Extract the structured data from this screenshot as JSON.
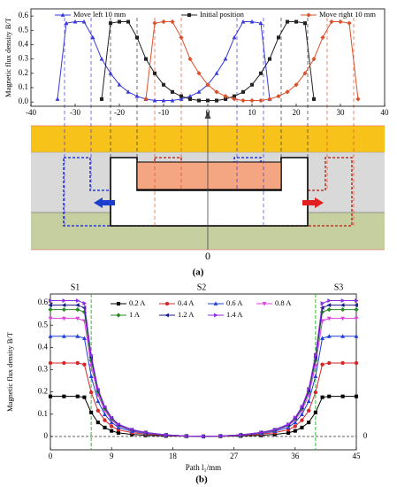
{
  "chart_data": [
    {
      "type": "line",
      "y_label": "Magnetic flux density B/T",
      "x": [
        -36,
        -34,
        -32,
        -30,
        -28,
        -26,
        -24,
        -22,
        -20,
        -18,
        -16,
        -14,
        -12,
        -10,
        -8,
        -6,
        -4,
        -2,
        0,
        2,
        4,
        6,
        8,
        10,
        12,
        14,
        16,
        18,
        20,
        22,
        24,
        26,
        28,
        30,
        32,
        34,
        36
      ],
      "xlim": [
        -40,
        40
      ],
      "xticks": [
        -40,
        -30,
        -20,
        -10,
        0,
        10,
        20,
        30,
        40
      ],
      "ylim": [
        -0.03,
        0.65
      ],
      "yticks": [
        {
          "value": 0,
          "label": "0.0"
        },
        0.1,
        0.2,
        0.3,
        0.4,
        0.5,
        0.6
      ],
      "series": [
        {
          "name": "Move left 10 mm",
          "color": "#3a3adb",
          "marker": "triangle",
          "values": [
            null,
            0.02,
            0.55,
            0.56,
            0.56,
            0.45,
            0.3,
            0.2,
            0.12,
            0.07,
            0.04,
            0.02,
            0.01,
            0.01,
            0.01,
            0.02,
            0.04,
            0.07,
            0.12,
            0.2,
            0.3,
            0.45,
            0.56,
            0.56,
            0.55,
            0.02,
            null,
            null,
            null,
            null,
            null,
            null,
            null,
            null,
            null,
            null,
            null
          ]
        },
        {
          "name": "Initial position",
          "color": "#222222",
          "marker": "square",
          "values": [
            null,
            null,
            null,
            null,
            null,
            null,
            0.02,
            0.55,
            0.56,
            0.56,
            0.45,
            0.3,
            0.2,
            0.12,
            0.07,
            0.04,
            0.02,
            0.01,
            0.01,
            0.01,
            0.02,
            0.04,
            0.07,
            0.12,
            0.2,
            0.3,
            0.45,
            0.56,
            0.56,
            0.55,
            0.02,
            null,
            null,
            null,
            null,
            null,
            null
          ]
        },
        {
          "name": "Move right 10 mm",
          "color": "#d9522b",
          "marker": "diamond",
          "values": [
            null,
            null,
            null,
            null,
            null,
            null,
            null,
            null,
            null,
            null,
            null,
            0.02,
            0.55,
            0.56,
            0.56,
            0.45,
            0.3,
            0.2,
            0.12,
            0.07,
            0.04,
            0.02,
            0.01,
            0.01,
            0.01,
            0.02,
            0.04,
            0.07,
            0.12,
            0.2,
            0.3,
            0.45,
            0.56,
            0.56,
            0.55,
            0.02,
            null
          ]
        }
      ]
    },
    {
      "type": "line",
      "y_label": "Magnetic flux density B/T",
      "x_label": "Path l₁/mm",
      "annotations": [
        "S1",
        "S2",
        "S3"
      ],
      "zero_line": true,
      "zero_line_label": "0",
      "vlines": [
        6,
        39
      ],
      "vline_color": "#33bb33",
      "x": [
        0,
        2,
        4,
        5,
        6,
        7,
        8,
        9,
        10,
        12,
        14,
        17,
        20,
        22.5,
        25,
        28,
        31,
        33,
        35,
        36,
        37,
        38,
        39,
        40,
        41,
        43,
        45
      ],
      "xlim": [
        0,
        45
      ],
      "xticks": [
        0,
        9,
        18,
        27,
        36,
        45
      ],
      "ylim": [
        -0.06,
        0.64
      ],
      "yticks": [
        0,
        0.1,
        0.2,
        0.3,
        0.4,
        0.5,
        0.6
      ],
      "series": [
        {
          "name": "0.2 A",
          "color": "#000000",
          "marker": "square",
          "values": [
            0.18,
            0.18,
            0.18,
            0.176,
            0.108,
            0.063,
            0.04,
            0.025,
            0.016,
            0.009,
            0.005,
            0.002,
            0.001,
            0,
            0.001,
            0.002,
            0.005,
            0.009,
            0.016,
            0.025,
            0.04,
            0.063,
            0.108,
            0.176,
            0.18,
            0.18,
            0.18
          ]
        },
        {
          "name": "0.4 A",
          "color": "#d62728",
          "marker": "circle",
          "values": [
            0.33,
            0.33,
            0.33,
            0.323,
            0.198,
            0.116,
            0.073,
            0.046,
            0.03,
            0.017,
            0.01,
            0.004,
            0.001,
            0,
            0.001,
            0.004,
            0.01,
            0.017,
            0.03,
            0.046,
            0.073,
            0.116,
            0.198,
            0.323,
            0.33,
            0.33,
            0.33
          ]
        },
        {
          "name": "0.6 A",
          "color": "#1f3fd9",
          "marker": "triangle",
          "values": [
            0.45,
            0.45,
            0.45,
            0.441,
            0.27,
            0.158,
            0.099,
            0.063,
            0.041,
            0.023,
            0.014,
            0.005,
            0.002,
            0,
            0.002,
            0.005,
            0.014,
            0.023,
            0.041,
            0.063,
            0.099,
            0.158,
            0.27,
            0.441,
            0.45,
            0.45,
            0.45
          ]
        },
        {
          "name": "0.8 A",
          "color": "#e040e0",
          "marker": "triangle-down",
          "values": [
            0.53,
            0.53,
            0.53,
            0.519,
            0.318,
            0.186,
            0.117,
            0.074,
            0.048,
            0.027,
            0.016,
            0.006,
            0.002,
            0,
            0.002,
            0.006,
            0.016,
            0.027,
            0.048,
            0.074,
            0.117,
            0.186,
            0.318,
            0.519,
            0.53,
            0.53,
            0.53
          ]
        },
        {
          "name": "1 A",
          "color": "#2a8a2a",
          "marker": "diamond",
          "values": [
            0.57,
            0.57,
            0.57,
            0.559,
            0.342,
            0.2,
            0.125,
            0.08,
            0.051,
            0.029,
            0.017,
            0.007,
            0.002,
            0,
            0.002,
            0.007,
            0.017,
            0.029,
            0.051,
            0.08,
            0.125,
            0.2,
            0.342,
            0.559,
            0.57,
            0.57,
            0.57
          ]
        },
        {
          "name": "1.2 A",
          "color": "#1a1a8a",
          "marker": "triangle-left",
          "values": [
            0.59,
            0.59,
            0.59,
            0.578,
            0.354,
            0.207,
            0.13,
            0.083,
            0.053,
            0.03,
            0.018,
            0.007,
            0.002,
            0,
            0.002,
            0.007,
            0.018,
            0.03,
            0.053,
            0.083,
            0.13,
            0.207,
            0.354,
            0.578,
            0.59,
            0.59,
            0.59
          ]
        },
        {
          "name": "1.4 A",
          "color": "#8a2be2",
          "marker": "triangle-right",
          "values": [
            0.61,
            0.61,
            0.61,
            0.598,
            0.366,
            0.214,
            0.134,
            0.085,
            0.055,
            0.031,
            0.018,
            0.007,
            0.002,
            0,
            0.002,
            0.007,
            0.018,
            0.031,
            0.055,
            0.085,
            0.134,
            0.214,
            0.366,
            0.598,
            0.61,
            0.61,
            0.61
          ]
        }
      ]
    }
  ],
  "figure": {
    "captions": [
      "(a)",
      "(b)"
    ],
    "origin_label": "0"
  }
}
